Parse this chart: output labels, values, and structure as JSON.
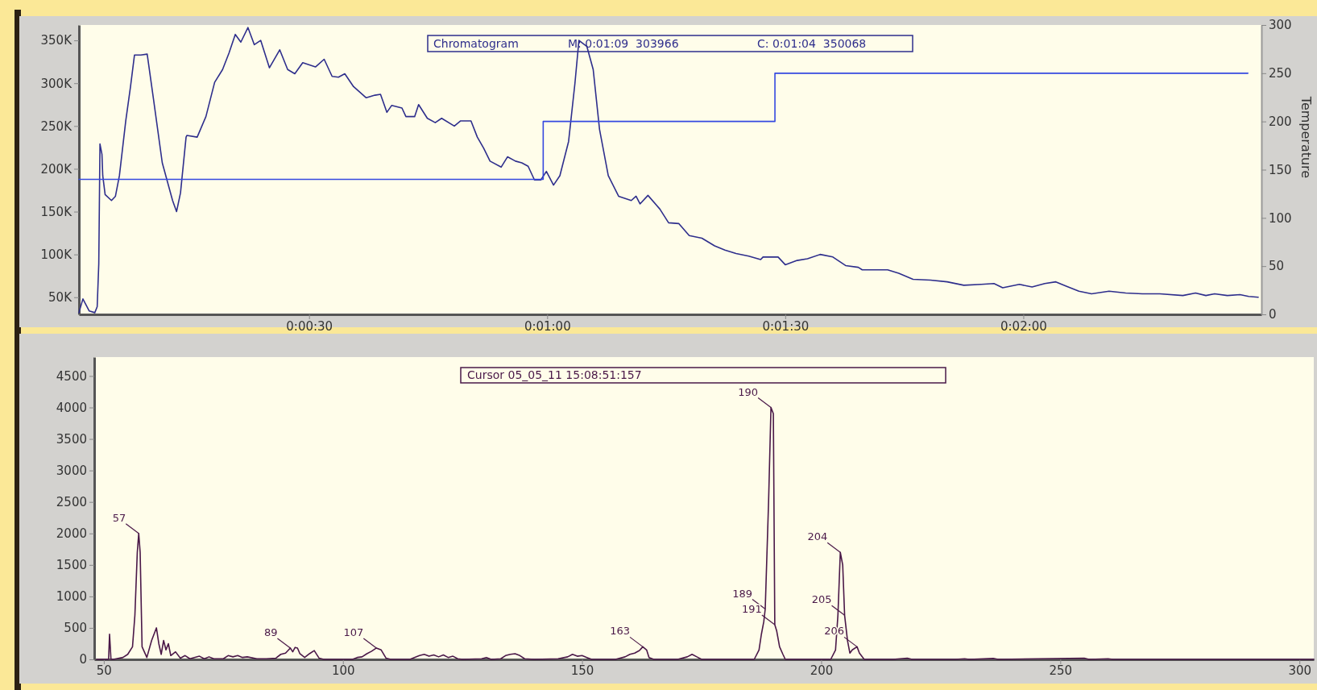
{
  "chart_data": [
    {
      "type": "line",
      "y2label": "Temperature",
      "xlim": [
        1,
        150
      ],
      "xticks": [
        {
          "value": 30,
          "label": "0:00:30"
        },
        {
          "value": 60,
          "label": "0:01:00"
        },
        {
          "value": 90,
          "label": "0:01:30"
        },
        {
          "value": 120,
          "label": "0:02:00"
        }
      ],
      "ylim": [
        30000,
        368000
      ],
      "yticks": [
        {
          "value": 50000,
          "label": "50K"
        },
        {
          "value": 100000,
          "label": "100K"
        },
        {
          "value": 150000,
          "label": "150K"
        },
        {
          "value": 200000,
          "label": "200K"
        },
        {
          "value": 250000,
          "label": "250K"
        },
        {
          "value": 300000,
          "label": "300K"
        },
        {
          "value": 350000,
          "label": "350K"
        }
      ],
      "y2lim": [
        0,
        300
      ],
      "y2ticks": [
        0,
        50,
        100,
        150,
        200,
        250,
        300
      ],
      "annotations": [
        "Chromatogram",
        "M: 0:01:09  303966",
        "C: 0:01:04  350068"
      ],
      "series": [
        {
          "color": "#2e2e8c",
          "x": [
            1,
            1.5,
            2.3,
            3,
            3.3,
            3.5,
            3.65,
            3.9,
            4,
            4.3,
            5.1,
            5.6,
            6.1,
            6.9,
            7.5,
            8,
            8.8,
            9.6,
            10.4,
            11.5,
            12.8,
            13.3,
            13.8,
            14.5,
            14.6,
            15.9,
            17,
            18.1,
            19.1,
            19.9,
            20.7,
            21.4,
            22.3,
            23.1,
            23.9,
            25,
            26.3,
            27.3,
            28.2,
            29.2,
            30.8,
            31.9,
            32.9,
            33.7,
            34.5,
            35.6,
            37.2,
            38.3,
            39,
            39.8,
            40.4,
            41.7,
            42.2,
            43.3,
            43.8,
            44.9,
            45.9,
            46.7,
            48.3,
            49.1,
            50.4,
            51.2,
            52,
            52.8,
            54.2,
            55,
            56,
            56.8,
            57.6,
            58.4,
            59.2,
            59.9,
            60.8,
            61.6,
            62.7,
            63.5,
            64,
            65,
            65.8,
            66.6,
            67.7,
            69,
            70.6,
            71.2,
            71.7,
            72.7,
            74.2,
            75.3,
            76.6,
            77.9,
            79.5,
            81.1,
            82.4,
            83.8,
            85.4,
            86.9,
            87.2,
            89.1,
            90,
            91.5,
            92.8,
            94.4,
            96,
            97.6,
            99.2,
            99.7,
            101.3,
            102.9,
            104.3,
            106.1,
            108.3,
            110.4,
            112.5,
            114.7,
            116.3,
            117.4,
            119.5,
            121.1,
            122.7,
            124.1,
            125.4,
            127,
            128.6,
            130.8,
            132.9,
            135,
            137.2,
            140.1,
            141.7,
            143,
            144.1,
            145.7,
            147.3,
            148.4,
            149.6
          ],
          "values": [
            32000,
            48000,
            34000,
            32000,
            39000,
            89000,
            229000,
            217000,
            192000,
            170000,
            163000,
            168000,
            192000,
            256000,
            296000,
            333000,
            333000,
            334000,
            281000,
            207000,
            163000,
            150000,
            172000,
            237000,
            239000,
            237000,
            261000,
            301000,
            316000,
            335000,
            357000,
            348000,
            365000,
            345000,
            350000,
            318000,
            339000,
            316000,
            311000,
            324000,
            319000,
            328000,
            308000,
            307000,
            311000,
            296000,
            283000,
            286000,
            287000,
            266000,
            274000,
            271000,
            261000,
            261000,
            275000,
            259000,
            254000,
            259000,
            250000,
            256000,
            256000,
            237000,
            224000,
            209000,
            202000,
            214000,
            209000,
            207000,
            203000,
            187000,
            187000,
            197000,
            181000,
            192000,
            232000,
            300000,
            350000,
            343000,
            316000,
            246000,
            192000,
            168000,
            163000,
            168000,
            159000,
            169000,
            153000,
            137000,
            136000,
            122000,
            119000,
            110000,
            105000,
            101000,
            98000,
            94000,
            97000,
            97000,
            88000,
            93000,
            95000,
            100000,
            97000,
            87000,
            85000,
            82000,
            82000,
            82000,
            78000,
            71000,
            70000,
            68000,
            64000,
            65000,
            66000,
            61000,
            65000,
            62000,
            66000,
            68000,
            63000,
            57000,
            54000,
            57000,
            55000,
            54000,
            54000,
            52000,
            55000,
            52000,
            54000,
            52000,
            53000,
            51000,
            50000
          ]
        },
        {
          "type": "step",
          "axis": "y2",
          "color": "#3548e0",
          "x": [
            1,
            59.5,
            88.7,
            148.3
          ],
          "values": [
            140,
            200,
            250,
            250
          ]
        }
      ]
    },
    {
      "type": "line",
      "xlim": [
        48,
        303
      ],
      "xticks": [
        50,
        100,
        150,
        200,
        250,
        300
      ],
      "ylim": [
        0,
        4800
      ],
      "yticks": [
        0,
        500,
        1000,
        1500,
        2000,
        2500,
        3000,
        3500,
        4000,
        4500
      ],
      "annotations": [
        "Cursor 05_05_11 15:08:51:157",
        {
          "text": "57",
          "x": 57.3,
          "y": 2000
        },
        {
          "text": "89",
          "x": 89,
          "y": 180
        },
        {
          "text": "107",
          "x": 107,
          "y": 180
        },
        {
          "text": "163",
          "x": 162.7,
          "y": 200
        },
        {
          "text": "190",
          "x": 189.5,
          "y": 4000
        },
        {
          "text": "189",
          "x": 188.3,
          "y": 800
        },
        {
          "text": "191",
          "x": 190.3,
          "y": 550
        },
        {
          "text": "204",
          "x": 204,
          "y": 1700
        },
        {
          "text": "205",
          "x": 204.9,
          "y": 700
        },
        {
          "text": "206",
          "x": 207.5,
          "y": 200
        }
      ],
      "series": [
        {
          "color": "#4a1848",
          "x": [
            48.5,
            50.5,
            51,
            51.2,
            51.5,
            52,
            54,
            55,
            56,
            56.5,
            57,
            57.3,
            57.6,
            58,
            59,
            60,
            61,
            61.5,
            62,
            62.5,
            63,
            63.5,
            64,
            65,
            66,
            67,
            68,
            70,
            71,
            72,
            73,
            75,
            76,
            77,
            78,
            79,
            80,
            82,
            84,
            86,
            87,
            88,
            89,
            89.5,
            90,
            90.5,
            91,
            92,
            93,
            94,
            95,
            96,
            100,
            102,
            103,
            104,
            105,
            106,
            107,
            108,
            109,
            110,
            114,
            116,
            117,
            118,
            119,
            120,
            121,
            122,
            123,
            124,
            125,
            129,
            130,
            131,
            133,
            134,
            135,
            136,
            137,
            138,
            140,
            145,
            147,
            148,
            149,
            150,
            151,
            152,
            157,
            159,
            160,
            161,
            162,
            162.7,
            163.5,
            164,
            165,
            170,
            172,
            173,
            174,
            175,
            180,
            186,
            187,
            187.5,
            188,
            188.3,
            189,
            189.5,
            190,
            190.3,
            190.7,
            191.3,
            192,
            192.5,
            200,
            202,
            203,
            203.5,
            204,
            204.5,
            204.9,
            205.5,
            206,
            206.5,
            207.5,
            208,
            209,
            215,
            218,
            219,
            228,
            230,
            231,
            236,
            237,
            255,
            256,
            260,
            261,
            300,
            303
          ],
          "values": [
            0,
            0,
            0,
            400,
            0,
            0,
            30,
            80,
            200,
            700,
            1700,
            2000,
            1700,
            200,
            30,
            300,
            500,
            250,
            80,
            300,
            150,
            250,
            60,
            120,
            20,
            60,
            10,
            50,
            10,
            40,
            10,
            10,
            60,
            40,
            60,
            30,
            40,
            10,
            10,
            20,
            80,
            100,
            180,
            120,
            190,
            180,
            90,
            30,
            90,
            140,
            20,
            0,
            0,
            0,
            30,
            40,
            90,
            130,
            180,
            150,
            20,
            0,
            0,
            60,
            80,
            50,
            70,
            40,
            70,
            30,
            50,
            10,
            0,
            10,
            30,
            0,
            10,
            60,
            80,
            90,
            60,
            10,
            0,
            10,
            40,
            80,
            50,
            60,
            30,
            0,
            0,
            40,
            80,
            100,
            140,
            200,
            150,
            30,
            0,
            0,
            40,
            80,
            40,
            0,
            0,
            0,
            150,
            400,
            600,
            800,
            2500,
            4000,
            3900,
            550,
            450,
            200,
            80,
            0,
            0,
            0,
            150,
            700,
            1700,
            1500,
            700,
            300,
            100,
            150,
            200,
            100,
            0,
            0,
            20,
            0,
            0,
            10,
            0,
            15,
            0,
            20,
            0,
            10,
            0,
            0,
            0
          ]
        }
      ]
    }
  ]
}
